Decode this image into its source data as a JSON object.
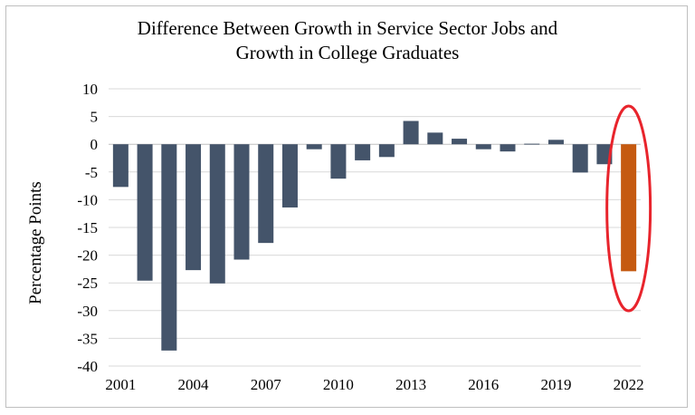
{
  "chart_data": {
    "type": "bar",
    "title_lines": [
      "Difference Between Growth in Service Sector Jobs and",
      "Growth in College Graduates"
    ],
    "ylabel": "Percentage Points",
    "xlabel": "",
    "ylim": [
      -40,
      10
    ],
    "yticks": [
      10,
      5,
      0,
      -5,
      -10,
      -15,
      -20,
      -25,
      -30,
      -35,
      -40
    ],
    "x": [
      2001,
      2002,
      2003,
      2004,
      2005,
      2006,
      2007,
      2008,
      2009,
      2010,
      2011,
      2012,
      2013,
      2014,
      2015,
      2016,
      2017,
      2018,
      2019,
      2020,
      2021,
      2022
    ],
    "xtick_labels": [
      "2001",
      "2004",
      "2007",
      "2010",
      "2013",
      "2016",
      "2019",
      "2022"
    ],
    "values": [
      -7.7,
      -24.6,
      -37.2,
      -22.7,
      -25.1,
      -20.8,
      -17.8,
      -11.4,
      -0.9,
      -6.2,
      -2.9,
      -2.3,
      4.2,
      2.1,
      1.0,
      -0.9,
      -1.3,
      0.1,
      0.8,
      -5.1,
      -3.6,
      -22.9
    ],
    "grid": true,
    "colors": {
      "default": "#44546a",
      "highlight": "#c55a11",
      "ellipse": "#e8242c",
      "grid": "#d9d9d9"
    },
    "highlight_index": 21,
    "annotation": "red ellipse around 2022 bar"
  }
}
